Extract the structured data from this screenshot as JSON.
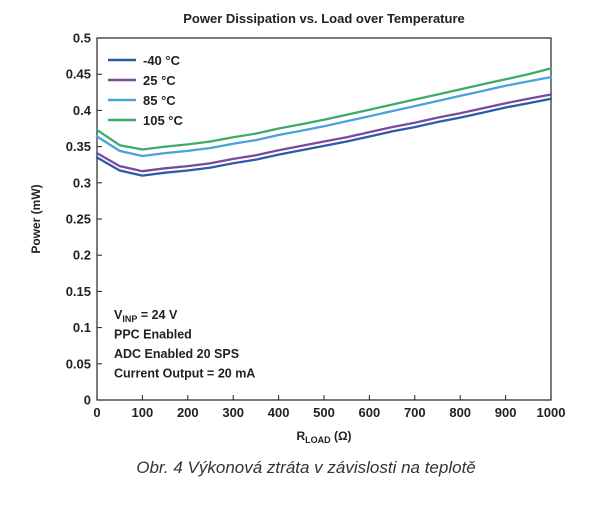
{
  "chart_data": {
    "type": "line",
    "title": "Power Dissipation vs. Load over Temperature",
    "xlabel_main": "R",
    "xlabel_sub": "LOAD",
    "xlabel_unit": " (Ω)",
    "ylabel": "Power (mW)",
    "xlim": [
      0,
      1000
    ],
    "ylim": [
      0,
      0.5
    ],
    "x_ticks": [
      "0",
      "100",
      "200",
      "300",
      "400",
      "500",
      "600",
      "700",
      "800",
      "900",
      "1000"
    ],
    "y_ticks": [
      "0",
      "0.05",
      "0.1",
      "0.15",
      "0.2",
      "0.25",
      "0.3",
      "0.35",
      "0.4",
      "0.45",
      "0.5"
    ],
    "grid": false,
    "legend_position": "top-left",
    "series": [
      {
        "name": "-40 °C",
        "color": "#2f5aa8",
        "x": [
          0,
          50,
          100,
          150,
          200,
          250,
          300,
          350,
          400,
          450,
          500,
          550,
          600,
          650,
          700,
          750,
          800,
          850,
          900,
          950,
          1000
        ],
        "values": [
          0.335,
          0.317,
          0.31,
          0.314,
          0.317,
          0.321,
          0.327,
          0.332,
          0.339,
          0.345,
          0.351,
          0.357,
          0.364,
          0.371,
          0.377,
          0.384,
          0.39,
          0.397,
          0.404,
          0.41,
          0.416
        ]
      },
      {
        "name": "25 °C",
        "color": "#7a4a9e",
        "x": [
          0,
          50,
          100,
          150,
          200,
          250,
          300,
          350,
          400,
          450,
          500,
          550,
          600,
          650,
          700,
          750,
          800,
          850,
          900,
          950,
          1000
        ],
        "values": [
          0.341,
          0.323,
          0.316,
          0.32,
          0.323,
          0.327,
          0.333,
          0.338,
          0.345,
          0.351,
          0.357,
          0.363,
          0.37,
          0.377,
          0.383,
          0.39,
          0.396,
          0.403,
          0.41,
          0.416,
          0.422
        ]
      },
      {
        "name": "85 °C",
        "color": "#4aa3d8",
        "x": [
          0,
          50,
          100,
          150,
          200,
          250,
          300,
          350,
          400,
          450,
          500,
          550,
          600,
          650,
          700,
          750,
          800,
          850,
          900,
          950,
          1000
        ],
        "values": [
          0.364,
          0.344,
          0.337,
          0.341,
          0.344,
          0.348,
          0.354,
          0.359,
          0.366,
          0.372,
          0.378,
          0.385,
          0.392,
          0.399,
          0.406,
          0.413,
          0.42,
          0.427,
          0.434,
          0.44,
          0.446
        ]
      },
      {
        "name": "105 °C",
        "color": "#3faa6a",
        "x": [
          0,
          50,
          100,
          150,
          200,
          250,
          300,
          350,
          400,
          450,
          500,
          550,
          600,
          650,
          700,
          750,
          800,
          850,
          900,
          950,
          1000
        ],
        "values": [
          0.373,
          0.352,
          0.346,
          0.35,
          0.353,
          0.357,
          0.363,
          0.368,
          0.375,
          0.381,
          0.387,
          0.394,
          0.401,
          0.408,
          0.415,
          0.422,
          0.429,
          0.436,
          0.443,
          0.45,
          0.458
        ]
      }
    ],
    "annotations": [
      {
        "main": "V",
        "sub": "INP",
        "rest": " = 24 V"
      },
      {
        "main": "PPC Enabled",
        "sub": "",
        "rest": ""
      },
      {
        "main": "ADC Enabled 20 SPS",
        "sub": "",
        "rest": ""
      },
      {
        "main": "Current Output = 20 mA",
        "sub": "",
        "rest": ""
      }
    ]
  },
  "caption": "Obr. 4  Výkonová ztráta v závislosti na teplotě"
}
